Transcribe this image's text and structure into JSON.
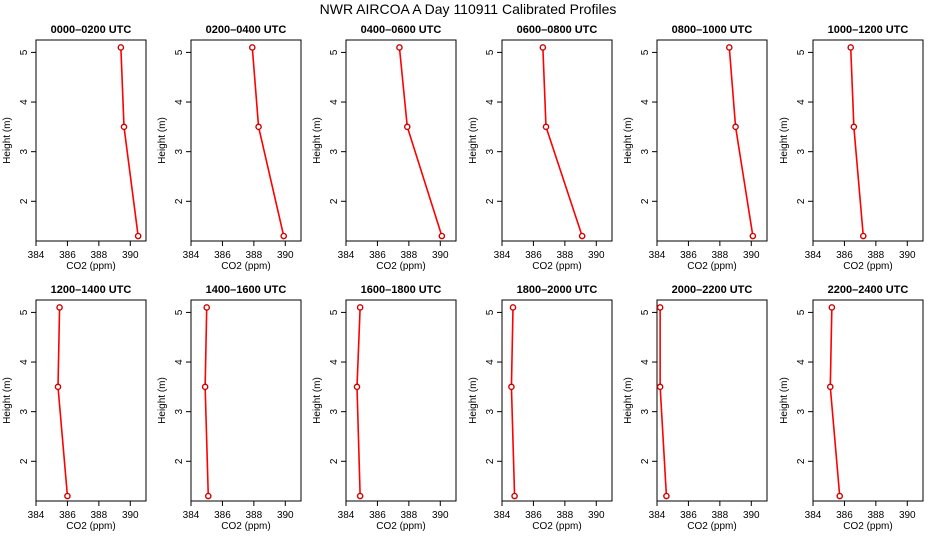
{
  "title": "NWR AIRCOA A  Day 110911  Calibrated Profiles",
  "chart_data": [
    {
      "type": "line",
      "title": "0000–0200 UTC",
      "xlabel": "CO2 (ppm)",
      "ylabel": "Height (m)",
      "xlim": [
        384,
        391
      ],
      "ylim": [
        1.2,
        5.25
      ],
      "xticks": [
        384,
        386,
        388,
        390
      ],
      "yticks": [
        2,
        3,
        4,
        5
      ],
      "x": [
        389.4,
        389.6,
        390.5
      ],
      "y": [
        5.1,
        3.5,
        1.3
      ],
      "line_color": "#ff0000",
      "marker_color": "#cc0000"
    },
    {
      "type": "line",
      "title": "0200–0400 UTC",
      "xlabel": "CO2 (ppm)",
      "ylabel": "Height (m)",
      "xlim": [
        384,
        391
      ],
      "ylim": [
        1.2,
        5.25
      ],
      "xticks": [
        384,
        386,
        388,
        390
      ],
      "yticks": [
        2,
        3,
        4,
        5
      ],
      "x": [
        387.9,
        388.3,
        389.9
      ],
      "y": [
        5.1,
        3.5,
        1.3
      ],
      "line_color": "#ff0000",
      "marker_color": "#cc0000"
    },
    {
      "type": "line",
      "title": "0400–0600 UTC",
      "xlabel": "CO2 (ppm)",
      "ylabel": "Height (m)",
      "xlim": [
        384,
        391
      ],
      "ylim": [
        1.2,
        5.25
      ],
      "xticks": [
        384,
        386,
        388,
        390
      ],
      "yticks": [
        2,
        3,
        4,
        5
      ],
      "x": [
        387.4,
        387.9,
        390.1
      ],
      "y": [
        5.1,
        3.5,
        1.3
      ],
      "line_color": "#ff0000",
      "marker_color": "#cc0000"
    },
    {
      "type": "line",
      "title": "0600–0800 UTC",
      "xlabel": "CO2 (ppm)",
      "ylabel": "Height (m)",
      "xlim": [
        384,
        391
      ],
      "ylim": [
        1.2,
        5.25
      ],
      "xticks": [
        384,
        386,
        388,
        390
      ],
      "yticks": [
        2,
        3,
        4,
        5
      ],
      "x": [
        386.6,
        386.8,
        389.1
      ],
      "y": [
        5.1,
        3.5,
        1.3
      ],
      "line_color": "#ff0000",
      "marker_color": "#cc0000"
    },
    {
      "type": "line",
      "title": "0800–1000 UTC",
      "xlabel": "CO2 (ppm)",
      "ylabel": "Height (m)",
      "xlim": [
        384,
        391
      ],
      "ylim": [
        1.2,
        5.25
      ],
      "xticks": [
        384,
        386,
        388,
        390
      ],
      "yticks": [
        2,
        3,
        4,
        5
      ],
      "x": [
        388.6,
        389.0,
        390.1
      ],
      "y": [
        5.1,
        3.5,
        1.3
      ],
      "line_color": "#ff0000",
      "marker_color": "#cc0000"
    },
    {
      "type": "line",
      "title": "1000–1200 UTC",
      "xlabel": "CO2 (ppm)",
      "ylabel": "Height (m)",
      "xlim": [
        384,
        391
      ],
      "ylim": [
        1.2,
        5.25
      ],
      "xticks": [
        384,
        386,
        388,
        390
      ],
      "yticks": [
        2,
        3,
        4,
        5
      ],
      "x": [
        386.4,
        386.6,
        387.2
      ],
      "y": [
        5.1,
        3.5,
        1.3
      ],
      "line_color": "#ff0000",
      "marker_color": "#cc0000"
    },
    {
      "type": "line",
      "title": "1200–1400 UTC",
      "xlabel": "CO2 (ppm)",
      "ylabel": "Height (m)",
      "xlim": [
        384,
        391
      ],
      "ylim": [
        1.2,
        5.25
      ],
      "xticks": [
        384,
        386,
        388,
        390
      ],
      "yticks": [
        2,
        3,
        4,
        5
      ],
      "x": [
        385.5,
        385.4,
        386.0
      ],
      "y": [
        5.1,
        3.5,
        1.3
      ],
      "line_color": "#ff0000",
      "marker_color": "#cc0000"
    },
    {
      "type": "line",
      "title": "1400–1600 UTC",
      "xlabel": "CO2 (ppm)",
      "ylabel": "Height (m)",
      "xlim": [
        384,
        391
      ],
      "ylim": [
        1.2,
        5.25
      ],
      "xticks": [
        384,
        386,
        388,
        390
      ],
      "yticks": [
        2,
        3,
        4,
        5
      ],
      "x": [
        385.0,
        384.9,
        385.1
      ],
      "y": [
        5.1,
        3.5,
        1.3
      ],
      "line_color": "#ff0000",
      "marker_color": "#cc0000"
    },
    {
      "type": "line",
      "title": "1600–1800 UTC",
      "xlabel": "CO2 (ppm)",
      "ylabel": "Height (m)",
      "xlim": [
        384,
        391
      ],
      "ylim": [
        1.2,
        5.25
      ],
      "xticks": [
        384,
        386,
        388,
        390
      ],
      "yticks": [
        2,
        3,
        4,
        5
      ],
      "x": [
        384.9,
        384.7,
        384.9
      ],
      "y": [
        5.1,
        3.5,
        1.3
      ],
      "line_color": "#ff0000",
      "marker_color": "#cc0000"
    },
    {
      "type": "line",
      "title": "1800–2000 UTC",
      "xlabel": "CO2 (ppm)",
      "ylabel": "Height (m)",
      "xlim": [
        384,
        391
      ],
      "ylim": [
        1.2,
        5.25
      ],
      "xticks": [
        384,
        386,
        388,
        390
      ],
      "yticks": [
        2,
        3,
        4,
        5
      ],
      "x": [
        384.7,
        384.6,
        384.8
      ],
      "y": [
        5.1,
        3.5,
        1.3
      ],
      "line_color": "#ff0000",
      "marker_color": "#cc0000"
    },
    {
      "type": "line",
      "title": "2000–2200 UTC",
      "xlabel": "CO2 (ppm)",
      "ylabel": "Height (m)",
      "xlim": [
        384,
        391
      ],
      "ylim": [
        1.2,
        5.25
      ],
      "xticks": [
        384,
        386,
        388,
        390
      ],
      "yticks": [
        2,
        3,
        4,
        5
      ],
      "x": [
        384.2,
        384.2,
        384.6
      ],
      "y": [
        5.1,
        3.5,
        1.3
      ],
      "line_color": "#ff0000",
      "marker_color": "#cc0000"
    },
    {
      "type": "line",
      "title": "2200–2400 UTC",
      "xlabel": "CO2 (ppm)",
      "ylabel": "Height (m)",
      "xlim": [
        384,
        391
      ],
      "ylim": [
        1.2,
        5.25
      ],
      "xticks": [
        384,
        386,
        388,
        390
      ],
      "yticks": [
        2,
        3,
        4,
        5
      ],
      "x": [
        385.2,
        385.1,
        385.7
      ],
      "y": [
        5.1,
        3.5,
        1.3
      ],
      "line_color": "#ff0000",
      "marker_color": "#cc0000"
    }
  ]
}
